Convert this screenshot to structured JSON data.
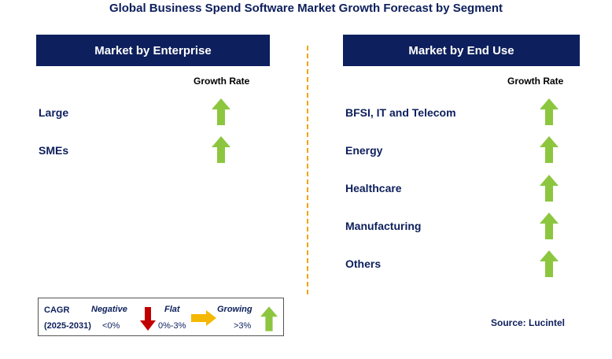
{
  "title": "Global Business Spend Software Market Growth Forecast by Segment",
  "colors": {
    "header_bg": "#0d1f5c",
    "up_arrow": "#8cc63f",
    "down_arrow": "#c00000",
    "flat_arrow": "#f5b800",
    "divider": "#f0a500"
  },
  "left_panel": {
    "header": "Market by Enterprise",
    "growth_rate_label": "Growth Rate",
    "rows": [
      {
        "label": "Large",
        "trend": "up-arrow-icon"
      },
      {
        "label": "SMEs",
        "trend": "up-arrow-icon"
      }
    ]
  },
  "right_panel": {
    "header": "Market by End Use",
    "growth_rate_label": "Growth Rate",
    "rows": [
      {
        "label": "BFSI, IT and Telecom",
        "trend": "up-arrow-icon"
      },
      {
        "label": "Energy",
        "trend": "up-arrow-icon"
      },
      {
        "label": "Healthcare",
        "trend": "up-arrow-icon"
      },
      {
        "label": "Manufacturing",
        "trend": "up-arrow-icon"
      },
      {
        "label": "Others",
        "trend": "up-arrow-icon"
      }
    ]
  },
  "legend": {
    "cagr": "CAGR",
    "period": "(2025-2031)",
    "negative": {
      "label": "Negative",
      "range": "<0%"
    },
    "flat": {
      "label": "Flat",
      "range": "0%-3%"
    },
    "growing": {
      "label": "Growing",
      "range": ">3%"
    }
  },
  "source": "Source: Lucintel"
}
